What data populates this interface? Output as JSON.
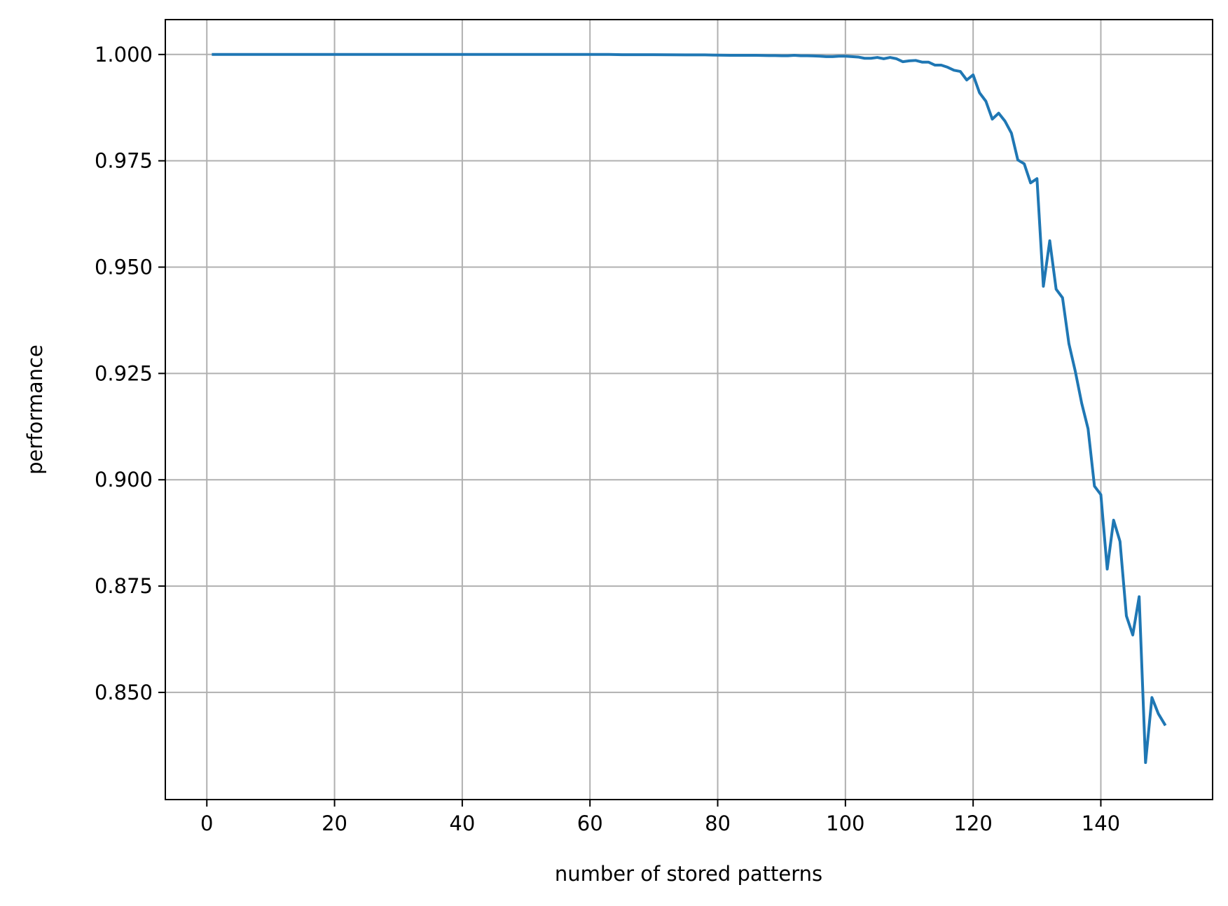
{
  "chart_data": {
    "type": "line",
    "title": "",
    "xlabel": "number of stored patterns",
    "ylabel": "performance",
    "xlim": [
      -6.5,
      157.5
    ],
    "ylim": [
      0.8248,
      1.0082
    ],
    "grid": true,
    "x_ticks": [
      0,
      20,
      40,
      60,
      80,
      100,
      120,
      140
    ],
    "x_tick_labels": [
      "0",
      "20",
      "40",
      "60",
      "80",
      "100",
      "120",
      "140"
    ],
    "y_ticks": [
      0.85,
      0.875,
      0.9,
      0.925,
      0.95,
      0.975,
      1.0
    ],
    "y_tick_labels": [
      "0.850",
      "0.875",
      "0.900",
      "0.925",
      "0.950",
      "0.975",
      "1.000"
    ],
    "series": [
      {
        "color": "#1f77b4",
        "x": [
          1,
          10,
          20,
          30,
          40,
          50,
          60,
          63,
          65,
          70,
          75,
          78,
          80,
          82,
          84,
          86,
          88,
          89,
          90,
          91,
          92,
          93,
          94,
          95,
          96,
          97,
          98,
          99,
          100,
          101,
          102,
          103,
          104,
          105,
          106,
          107,
          108,
          109,
          110,
          111,
          112,
          113,
          114,
          115,
          116,
          117,
          118,
          119,
          120,
          121,
          122,
          123,
          124,
          125,
          126,
          127,
          128,
          129,
          130,
          131,
          132,
          133,
          134,
          135,
          136,
          137,
          138,
          139,
          140,
          141,
          142,
          143,
          144,
          145,
          146,
          147,
          148,
          149,
          150
        ],
        "y": [
          1.0,
          1.0,
          1.0,
          1.0,
          1.0,
          1.0,
          1.0,
          1.0,
          0.99995,
          0.99995,
          0.9999,
          0.9999,
          0.99985,
          0.9998,
          0.9998,
          0.9998,
          0.99975,
          0.99975,
          0.9997,
          0.9997,
          0.9998,
          0.9997,
          0.9997,
          0.99965,
          0.9996,
          0.9995,
          0.9995,
          0.9996,
          0.9996,
          0.9995,
          0.9994,
          0.9991,
          0.9991,
          0.9993,
          0.999,
          0.9993,
          0.999,
          0.9983,
          0.9985,
          0.9986,
          0.9982,
          0.9982,
          0.9975,
          0.9975,
          0.997,
          0.9963,
          0.996,
          0.994,
          0.9952,
          0.991,
          0.989,
          0.9848,
          0.9862,
          0.9843,
          0.9815,
          0.9752,
          0.9743,
          0.9698,
          0.9708,
          0.9455,
          0.9562,
          0.9448,
          0.9428,
          0.932,
          0.9255,
          0.918,
          0.912,
          0.8985,
          0.8965,
          0.879,
          0.8905,
          0.8855,
          0.868,
          0.8635,
          0.8725,
          0.8335,
          0.8488,
          0.845,
          0.8425
        ]
      }
    ]
  }
}
